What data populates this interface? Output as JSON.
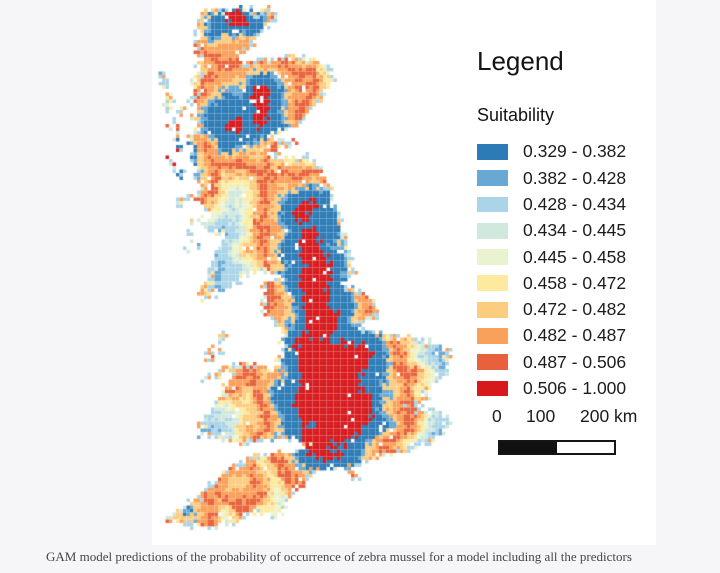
{
  "page": {
    "background": "#f6f6f8",
    "caption": "GAM model predictions of the probability of occurrence of zebra mussel for a model including all the predictors"
  },
  "legend": {
    "title": "Legend",
    "subtitle": "Suitability",
    "items": [
      {
        "label": "0.329 - 0.382",
        "color": "#2c7bb6"
      },
      {
        "label": "0.382 - 0.428",
        "color": "#69a8d4"
      },
      {
        "label": "0.428 - 0.434",
        "color": "#abd4e8"
      },
      {
        "label": "0.434 - 0.445",
        "color": "#d1e8dd"
      },
      {
        "label": "0.445 - 0.458",
        "color": "#eaf3cf"
      },
      {
        "label": "0.458 - 0.472",
        "color": "#fdea9f"
      },
      {
        "label": "0.472 - 0.482",
        "color": "#fccc7f"
      },
      {
        "label": "0.482 - 0.487",
        "color": "#f9a05a"
      },
      {
        "label": "0.487 - 0.506",
        "color": "#e8613c"
      },
      {
        "label": "0.506 - 1.000",
        "color": "#d7191c"
      }
    ]
  },
  "scalebar": {
    "labels": [
      "0",
      "100",
      "200 km"
    ]
  },
  "map_data": {
    "type": "raster-map",
    "region": "Great Britain",
    "variable": "Suitability (probability of occurrence of zebra mussel)",
    "grid": {
      "cols": 88,
      "rows": 152,
      "cell": 3.5
    },
    "classes": {
      "A": "#2c7bb6",
      "B": "#69a8d4",
      "C": "#abd4e8",
      "D": "#d1e8dd",
      "E": "#eaf3cf",
      "F": "#fdea9f",
      "G": "#fccc7f",
      "H": "#f9a05a",
      "I": "#e8613c",
      "J": "#d7191c"
    },
    "class_ranges": {
      "A": [
        0.329,
        0.382
      ],
      "B": [
        0.382,
        0.428
      ],
      "C": [
        0.428,
        0.434
      ],
      "D": [
        0.434,
        0.445
      ],
      "E": [
        0.445,
        0.458
      ],
      "F": [
        0.458,
        0.472
      ],
      "G": [
        0.472,
        0.482
      ],
      "H": [
        0.482,
        0.487
      ],
      "I": [
        0.487,
        0.506
      ],
      "J": [
        0.506,
        1.0
      ]
    },
    "bands": [
      [
        2.2,
        "J"
      ],
      [
        6.5,
        "A"
      ],
      [
        7.6,
        "B"
      ],
      [
        9.2,
        "G"
      ],
      [
        11.4,
        "H"
      ],
      [
        13.4,
        "I"
      ],
      [
        14.6,
        "H"
      ],
      [
        16,
        "G"
      ],
      [
        17.4,
        "F"
      ],
      [
        18.8,
        "E"
      ],
      [
        20.2,
        "D"
      ],
      [
        23,
        "C"
      ],
      [
        25.2,
        "B"
      ],
      [
        27.4,
        "C"
      ],
      [
        29.2,
        "F"
      ],
      [
        31.2,
        "G"
      ],
      [
        34,
        "H"
      ],
      [
        36.2,
        "I"
      ],
      [
        38.2,
        "H"
      ],
      [
        40.2,
        "G"
      ],
      [
        42.4,
        "F"
      ],
      [
        44.6,
        "E"
      ],
      [
        48,
        "C"
      ],
      [
        9999,
        "B"
      ]
    ],
    "noise": {
      "amp": 2.7,
      "freq": 0.2,
      "jitter": 1.5
    },
    "coastline": [
      [
        13,
        2
      ],
      [
        16,
        0.5
      ],
      [
        20,
        2
      ],
      [
        23,
        0.5
      ],
      [
        27,
        0.5
      ],
      [
        29,
        2.5
      ],
      [
        33,
        0.5
      ],
      [
        35,
        2
      ],
      [
        34,
        5
      ],
      [
        31,
        8
      ],
      [
        28,
        11
      ],
      [
        25,
        14
      ],
      [
        24,
        17
      ],
      [
        28,
        16
      ],
      [
        33,
        15
      ],
      [
        38,
        14.5
      ],
      [
        43,
        15
      ],
      [
        47,
        16
      ],
      [
        50,
        18
      ],
      [
        51,
        22
      ],
      [
        49,
        26
      ],
      [
        46,
        29
      ],
      [
        43,
        33
      ],
      [
        40,
        35
      ],
      [
        36,
        36.5
      ],
      [
        32,
        36
      ],
      [
        36,
        38
      ],
      [
        39,
        38
      ],
      [
        41,
        40
      ],
      [
        36,
        41
      ],
      [
        31,
        41.5
      ],
      [
        35,
        43
      ],
      [
        40,
        43
      ],
      [
        44,
        43
      ],
      [
        47,
        46
      ],
      [
        49,
        50
      ],
      [
        51,
        55
      ],
      [
        52,
        58
      ],
      [
        54,
        63
      ],
      [
        55,
        67
      ],
      [
        56,
        71
      ],
      [
        57,
        75
      ],
      [
        58,
        77
      ],
      [
        55,
        79
      ],
      [
        53,
        80
      ],
      [
        57,
        81
      ],
      [
        60,
        82
      ],
      [
        63,
        85
      ],
      [
        65,
        88
      ],
      [
        62,
        90
      ],
      [
        58,
        92
      ],
      [
        62,
        93
      ],
      [
        66,
        94
      ],
      [
        70,
        94.5
      ],
      [
        75,
        95
      ],
      [
        80,
        96
      ],
      [
        85,
        98
      ],
      [
        84,
        102
      ],
      [
        83,
        106
      ],
      [
        80,
        109
      ],
      [
        77,
        111
      ],
      [
        80,
        113
      ],
      [
        76,
        114
      ],
      [
        72,
        115
      ],
      [
        76,
        115.5
      ],
      [
        81,
        116
      ],
      [
        84,
        118
      ],
      [
        84,
        121
      ],
      [
        81,
        124
      ],
      [
        77,
        126
      ],
      [
        73,
        127
      ],
      [
        70,
        128
      ],
      [
        66,
        129
      ],
      [
        62,
        130
      ],
      [
        58,
        132
      ],
      [
        55,
        133
      ],
      [
        51,
        133
      ],
      [
        47,
        133.5
      ],
      [
        44,
        135
      ],
      [
        42,
        138
      ],
      [
        40,
        140
      ],
      [
        38,
        142
      ],
      [
        36,
        145
      ],
      [
        34,
        147
      ],
      [
        31,
        146
      ],
      [
        28,
        145
      ],
      [
        25,
        147
      ],
      [
        22,
        148
      ],
      [
        18,
        149
      ],
      [
        14,
        150
      ],
      [
        10,
        149
      ],
      [
        5,
        148
      ],
      [
        2,
        147
      ],
      [
        5,
        145
      ],
      [
        8,
        143
      ],
      [
        11,
        141
      ],
      [
        14,
        139
      ],
      [
        16,
        137
      ],
      [
        19,
        134
      ],
      [
        22,
        131
      ],
      [
        25,
        130
      ],
      [
        28,
        129
      ],
      [
        31,
        128
      ],
      [
        34,
        127.5
      ],
      [
        38,
        127.5
      ],
      [
        41,
        127
      ],
      [
        43,
        126
      ],
      [
        39,
        124.5
      ],
      [
        36,
        124
      ],
      [
        33,
        124.5
      ],
      [
        30,
        125
      ],
      [
        27,
        126
      ],
      [
        24,
        126
      ],
      [
        21,
        125
      ],
      [
        18,
        124
      ],
      [
        15,
        124
      ],
      [
        12,
        123.5
      ],
      [
        13,
        120
      ],
      [
        15,
        117
      ],
      [
        17,
        114
      ],
      [
        19,
        111
      ],
      [
        20,
        108
      ],
      [
        22,
        106
      ],
      [
        21,
        104
      ],
      [
        19,
        106
      ],
      [
        16,
        107.5
      ],
      [
        13,
        108
      ],
      [
        15,
        105.5
      ],
      [
        18,
        104
      ],
      [
        21,
        103
      ],
      [
        24,
        102
      ],
      [
        27,
        102
      ],
      [
        30,
        102.5
      ],
      [
        33,
        104
      ],
      [
        35,
        102
      ],
      [
        34,
        100
      ],
      [
        36,
        101
      ],
      [
        38,
        99
      ],
      [
        36,
        97
      ],
      [
        35,
        95
      ],
      [
        37,
        93
      ],
      [
        34,
        92
      ],
      [
        33,
        90
      ],
      [
        31,
        88
      ],
      [
        30,
        85
      ],
      [
        31,
        82
      ],
      [
        30,
        79
      ],
      [
        33,
        78
      ],
      [
        36,
        78
      ],
      [
        33,
        76.5
      ],
      [
        29,
        77
      ],
      [
        26,
        78
      ],
      [
        23,
        80
      ],
      [
        20,
        82
      ],
      [
        17,
        83
      ],
      [
        14,
        84
      ],
      [
        12,
        83
      ],
      [
        13,
        80
      ],
      [
        15,
        77
      ],
      [
        16,
        74
      ],
      [
        17,
        71
      ],
      [
        19,
        68
      ],
      [
        21,
        66
      ],
      [
        18,
        66
      ],
      [
        15,
        65
      ],
      [
        13,
        62
      ],
      [
        15,
        60
      ],
      [
        13,
        57
      ],
      [
        11,
        55
      ],
      [
        13,
        52
      ],
      [
        10,
        50
      ],
      [
        12,
        47
      ],
      [
        9,
        44
      ],
      [
        11,
        41
      ],
      [
        8,
        39
      ],
      [
        11,
        37
      ],
      [
        13,
        35
      ],
      [
        10,
        32
      ],
      [
        12,
        30
      ],
      [
        9,
        27
      ],
      [
        12,
        25
      ],
      [
        10,
        22
      ],
      [
        13,
        20
      ],
      [
        11,
        17
      ],
      [
        13,
        15
      ],
      [
        10,
        12
      ],
      [
        12,
        9
      ],
      [
        11,
        6
      ]
    ],
    "islands": [
      [
        2,
        20,
        1
      ],
      [
        3,
        23,
        1.2
      ],
      [
        4,
        26,
        1
      ],
      [
        3,
        29,
        1.4
      ],
      [
        5,
        32,
        1
      ],
      [
        5,
        35,
        1.3
      ],
      [
        6,
        38,
        1
      ],
      [
        7,
        41,
        1.2
      ],
      [
        4,
        44,
        0.8
      ],
      [
        5,
        46,
        1
      ],
      [
        7,
        30,
        1.6
      ],
      [
        5,
        28,
        1
      ],
      [
        7,
        48,
        1.4
      ],
      [
        7,
        57,
        1.3
      ],
      [
        9,
        55,
        1.2
      ],
      [
        11,
        62,
        1
      ],
      [
        10,
        65,
        1
      ],
      [
        10,
        68,
        1
      ],
      [
        9,
        71,
        1
      ],
      [
        13,
        69,
        1
      ],
      [
        19,
        95,
        1.4
      ],
      [
        17,
        97,
        1
      ],
      [
        16,
        100,
        1.7
      ],
      [
        19,
        100,
        1.1
      ],
      [
        57,
        135,
        1.6
      ],
      [
        25,
        0,
        0.8
      ],
      [
        28,
        0,
        0.6
      ]
    ],
    "cores": [
      [
        50,
        103,
        8,
        0
      ],
      [
        51,
        113,
        9,
        0
      ],
      [
        48,
        121,
        5.5,
        0
      ],
      [
        43,
        60,
        1.2,
        0
      ],
      [
        44,
        66,
        1.4,
        0
      ],
      [
        45,
        72,
        1.5,
        0
      ],
      [
        45,
        78,
        1.6,
        0
      ],
      [
        46,
        84,
        2,
        0
      ],
      [
        47,
        90,
        2.5,
        0
      ],
      [
        48,
        95,
        3,
        0
      ],
      [
        22,
        3,
        0.8,
        0
      ],
      [
        23,
        34,
        0.8,
        0
      ],
      [
        4,
        46,
        0.4,
        0
      ],
      [
        28,
        30,
        3.5,
        2.3
      ],
      [
        31,
        26,
        2.5,
        2.3
      ],
      [
        24,
        137,
        1.5,
        7.6
      ],
      [
        10,
        145,
        1.2,
        7.6
      ],
      [
        21,
        105,
        1.2,
        7.6
      ]
    ]
  }
}
